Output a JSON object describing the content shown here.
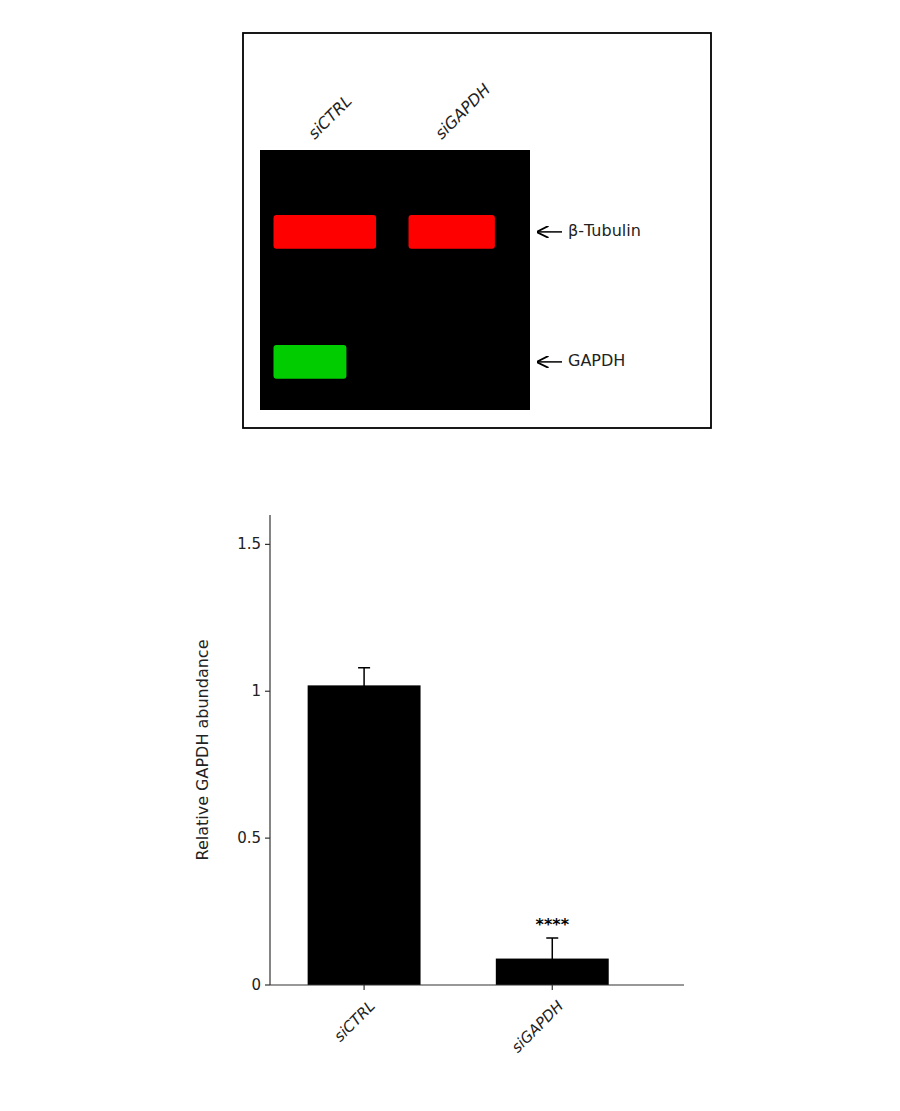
{
  "chart_data": {
    "type": "bar",
    "categories": [
      "siCTRL",
      "siGAPDH"
    ],
    "values": [
      1.02,
      0.09
    ],
    "errors": [
      0.06,
      0.07
    ],
    "color": "#000000",
    "significance": [
      null,
      "****"
    ],
    "ylabel": "Relative GAPDH abundance",
    "ylim": [
      0,
      1.6
    ],
    "yticks": [
      0,
      0.5,
      1.0,
      1.5
    ],
    "annotations": [
      "β-Tubulin",
      "GAPDH"
    ]
  }
}
